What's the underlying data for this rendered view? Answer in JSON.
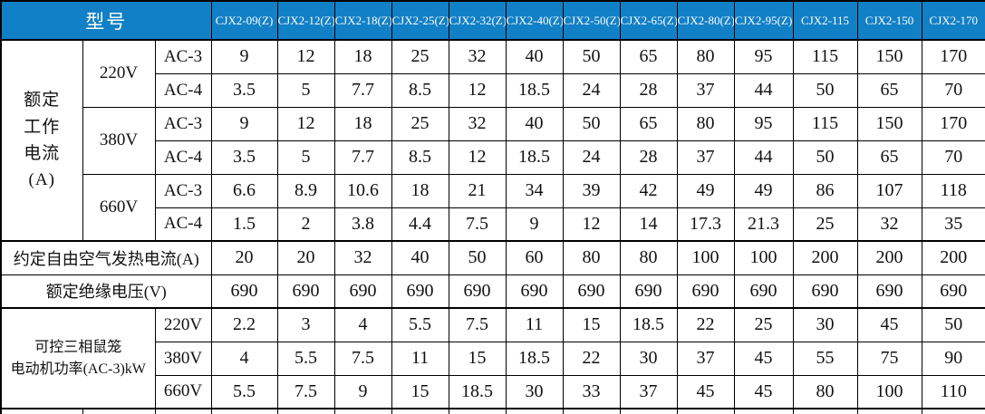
{
  "colors": {
    "header_bg": "#1280c6",
    "header_text": "#fdfdfd",
    "border": "#000000",
    "cell_text": "#111111"
  },
  "table": {
    "corner_label": "型号",
    "models": [
      "CJX2-09(Z)",
      "CJX2-12(Z)",
      "CJX2-18(Z)",
      "CJX2-25(Z)",
      "CJX2-32(Z)",
      "CJX2-40(Z)",
      "CJX2-50(Z)",
      "CJX2-65(Z)",
      "CJX2-80(Z)",
      "CJX2-95(Z)",
      "CJX2-115",
      "CJX2-150",
      "CJX2-170"
    ],
    "rated_current": {
      "group_label_lines": [
        "额定",
        "工作",
        "电流",
        "(A)"
      ],
      "rows": [
        {
          "voltage": "220V",
          "class": "AC-3",
          "values": [
            "9",
            "12",
            "18",
            "25",
            "32",
            "40",
            "50",
            "65",
            "80",
            "95",
            "115",
            "150",
            "170"
          ]
        },
        {
          "voltage": "220V",
          "class": "AC-4",
          "values": [
            "3.5",
            "5",
            "7.7",
            "8.5",
            "12",
            "18.5",
            "24",
            "28",
            "37",
            "44",
            "50",
            "65",
            "70"
          ]
        },
        {
          "voltage": "380V",
          "class": "AC-3",
          "values": [
            "9",
            "12",
            "18",
            "25",
            "32",
            "40",
            "50",
            "65",
            "80",
            "95",
            "115",
            "150",
            "170"
          ]
        },
        {
          "voltage": "380V",
          "class": "AC-4",
          "values": [
            "3.5",
            "5",
            "7.7",
            "8.5",
            "12",
            "18.5",
            "24",
            "28",
            "37",
            "44",
            "50",
            "65",
            "70"
          ]
        },
        {
          "voltage": "660V",
          "class": "AC-3",
          "values": [
            "6.6",
            "8.9",
            "10.6",
            "18",
            "21",
            "34",
            "39",
            "42",
            "49",
            "49",
            "86",
            "107",
            "118"
          ]
        },
        {
          "voltage": "660V",
          "class": "AC-4",
          "values": [
            "1.5",
            "2",
            "3.8",
            "4.4",
            "7.5",
            "9",
            "12",
            "14",
            "17.3",
            "21.3",
            "25",
            "32",
            "35"
          ]
        }
      ]
    },
    "thermal_current": {
      "label": "约定自由空气发热电流(A)",
      "values": [
        "20",
        "20",
        "32",
        "40",
        "50",
        "60",
        "80",
        "80",
        "100",
        "100",
        "200",
        "200",
        "200"
      ]
    },
    "insulation_voltage": {
      "label": "额定绝缘电压(V)",
      "values": [
        "690",
        "690",
        "690",
        "690",
        "690",
        "690",
        "690",
        "690",
        "690",
        "690",
        "690",
        "690",
        "690"
      ]
    },
    "motor_power": {
      "group_label_lines": [
        "可控三相鼠笼",
        "电动机功率(AC-3)kW"
      ],
      "rows": [
        {
          "voltage": "220V",
          "values": [
            "2.2",
            "3",
            "4",
            "5.5",
            "7.5",
            "11",
            "15",
            "18.5",
            "22",
            "25",
            "30",
            "45",
            "50"
          ]
        },
        {
          "voltage": "380V",
          "values": [
            "4",
            "5.5",
            "7.5",
            "11",
            "15",
            "18.5",
            "22",
            "30",
            "37",
            "45",
            "55",
            "75",
            "90"
          ]
        },
        {
          "voltage": "660V",
          "values": [
            "5.5",
            "7.5",
            "9",
            "15",
            "18.5",
            "30",
            "33",
            "37",
            "45",
            "45",
            "80",
            "100",
            "110"
          ]
        }
      ]
    }
  }
}
